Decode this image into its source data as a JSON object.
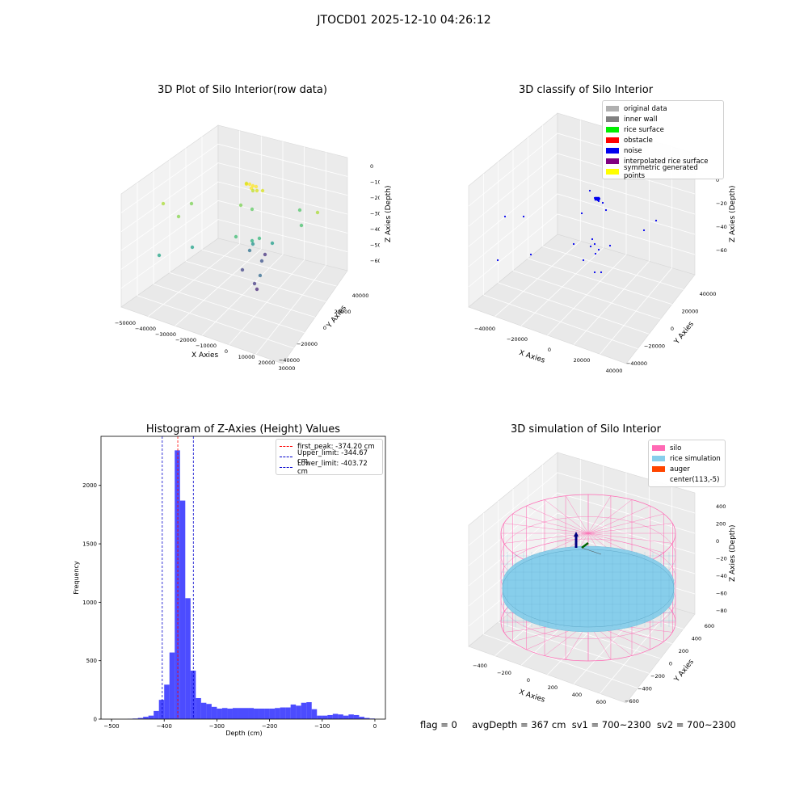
{
  "figure_title": "JTOCD01 2025-12-10 04:26:12",
  "footer": {
    "flag": "flag = 0",
    "avg_depth": "avgDepth = 367 cm",
    "sv1": "sv1 = 700~2300",
    "sv2": "sv2 = 700~2300"
  },
  "chart_data": [
    {
      "type": "scatter",
      "title": "3D Plot of Silo Interior(row data)",
      "xlabel": "X Axies",
      "ylabel": "Y Axies",
      "zlabel": "Z Axies (Depth)",
      "x_ticks": [
        "−50000",
        "−40000",
        "−30000",
        "−20000",
        "−10000",
        "0",
        "10000",
        "20000",
        "30000"
      ],
      "y_ticks": [
        "40000",
        "20000",
        "0",
        "−20000",
        "−40000"
      ],
      "z_ticks": [
        "0",
        "−10000",
        "−20000",
        "−30000",
        "−40000",
        "−50000",
        "−60000"
      ],
      "colormap": "viridis",
      "note_points": "approximately 30 scattered points colored by depth (viridis), yellow cluster near Z ≈ −12000"
    },
    {
      "type": "scatter",
      "title": "3D classify of Silo Interior",
      "xlabel": "X Axies",
      "ylabel": "Y Axies",
      "zlabel": "Z Axies (Depth)",
      "x_ticks": [
        "−40000",
        "−20000",
        "0",
        "20000",
        "40000"
      ],
      "y_ticks": [
        "40000",
        "20000",
        "0",
        "−20000",
        "−40000"
      ],
      "z_ticks": [
        "0",
        "−20000",
        "−40000",
        "−60000"
      ],
      "legend_position": "top-right",
      "legend": [
        {
          "label": "original data",
          "color": "#b0b0b0"
        },
        {
          "label": "inner wall",
          "color": "#808080"
        },
        {
          "label": "rice surface",
          "color": "#00ee00"
        },
        {
          "label": "obstacle",
          "color": "#ff0000"
        },
        {
          "label": "noise",
          "color": "#0000ee"
        },
        {
          "label": "interpolated rice surface",
          "color": "#800080"
        },
        {
          "label": "symmetric generated points",
          "color": "#ffff00"
        }
      ]
    },
    {
      "type": "bar",
      "title": "Histogram of Z-Axies (Height) Values",
      "xlabel": "Depth (cm)",
      "ylabel": "Frequency",
      "xlim": [
        -520,
        20
      ],
      "ylim": [
        0,
        2420
      ],
      "x_ticks": [
        -500,
        -400,
        -300,
        -200,
        -100,
        0
      ],
      "y_ticks": [
        0,
        500,
        1000,
        1500,
        2000
      ],
      "bar_color": "#0000ff",
      "bin_width": 10,
      "bins_left_edge": [
        -470,
        -460,
        -450,
        -440,
        -430,
        -420,
        -410,
        -400,
        -390,
        -380,
        -370,
        -360,
        -350,
        -340,
        -330,
        -320,
        -310,
        -300,
        -290,
        -280,
        -270,
        -260,
        -250,
        -240,
        -230,
        -220,
        -210,
        -200,
        -190,
        -180,
        -170,
        -160,
        -150,
        -140,
        -130,
        -120,
        -110,
        -100,
        -90,
        -80,
        -70,
        -60,
        -50,
        -40,
        -30,
        -20,
        -10
      ],
      "values": [
        2,
        5,
        10,
        20,
        30,
        70,
        165,
        295,
        570,
        2300,
        1870,
        1035,
        415,
        180,
        140,
        130,
        105,
        90,
        95,
        90,
        95,
        95,
        95,
        95,
        90,
        90,
        90,
        90,
        95,
        100,
        100,
        125,
        115,
        140,
        145,
        85,
        30,
        30,
        35,
        45,
        40,
        30,
        40,
        35,
        20,
        10,
        5
      ],
      "reference_lines": [
        {
          "label": "first_peak: -374.20 cm",
          "x": -374.2,
          "color": "#ff0000"
        },
        {
          "label": "Upper_limit: -344.67 cm",
          "x": -344.67,
          "color": "#0000cc"
        },
        {
          "label": "Lower_limit: -403.72 cm",
          "x": -403.72,
          "color": "#0000cc"
        }
      ],
      "legend_position": "top-right"
    },
    {
      "type": "scatter",
      "title": "3D simulation of Silo Interior",
      "xlabel": "X Axies",
      "ylabel": "Y Axies",
      "zlabel": "Z Axies (Depth)",
      "x_ticks": [
        "−400",
        "−200",
        "0",
        "200",
        "400",
        "600"
      ],
      "y_ticks": [
        "600",
        "400",
        "200",
        "0",
        "−200",
        "−400",
        "−600"
      ],
      "z_ticks": [
        "400",
        "200",
        "0",
        "−200",
        "−400",
        "−600",
        "−800"
      ],
      "legend_position": "top-right",
      "legend": [
        {
          "label": "silo",
          "color": "#ff69b4"
        },
        {
          "label": "rice simulation",
          "color": "#87ceeb"
        },
        {
          "label": "auger",
          "color": "#ff4500"
        },
        {
          "label": "center(113,-5)",
          "color": ""
        }
      ]
    }
  ]
}
